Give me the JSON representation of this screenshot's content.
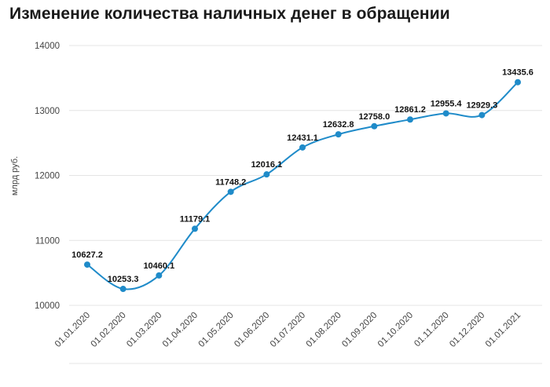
{
  "header": {
    "title": "Изменение количества наличных денег в обращении"
  },
  "chart_data": {
    "type": "line",
    "title": "Изменение количества наличных денег в обращении",
    "xlabel": "",
    "ylabel": "млрд руб.",
    "categories": [
      "01.01.2020",
      "01.02.2020",
      "01.03.2020",
      "01.04.2020",
      "01.05.2020",
      "01.06.2020",
      "01.07.2020",
      "01.08.2020",
      "01.09.2020",
      "01.10.2020",
      "01.11.2020",
      "01.12.2020",
      "01.01.2021"
    ],
    "values": [
      10627.2,
      10253.3,
      10460.1,
      11179.1,
      11748.2,
      12016.1,
      12431.1,
      12632.8,
      12758.0,
      12861.2,
      12955.4,
      12929.3,
      13435.6
    ],
    "value_labels": [
      "10627.2",
      "10253.3",
      "10460.1",
      "11179.1",
      "11748.2",
      "12016.1",
      "12431.1",
      "12632.8",
      "12758.0",
      "12861.2",
      "12955.4",
      "12929.3",
      "13435.6"
    ],
    "ylim": [
      10000,
      14000
    ],
    "yticks": [
      "10000",
      "11000",
      "12000",
      "13000",
      "14000"
    ],
    "grid": true,
    "line_color": "#1f8bc9"
  }
}
